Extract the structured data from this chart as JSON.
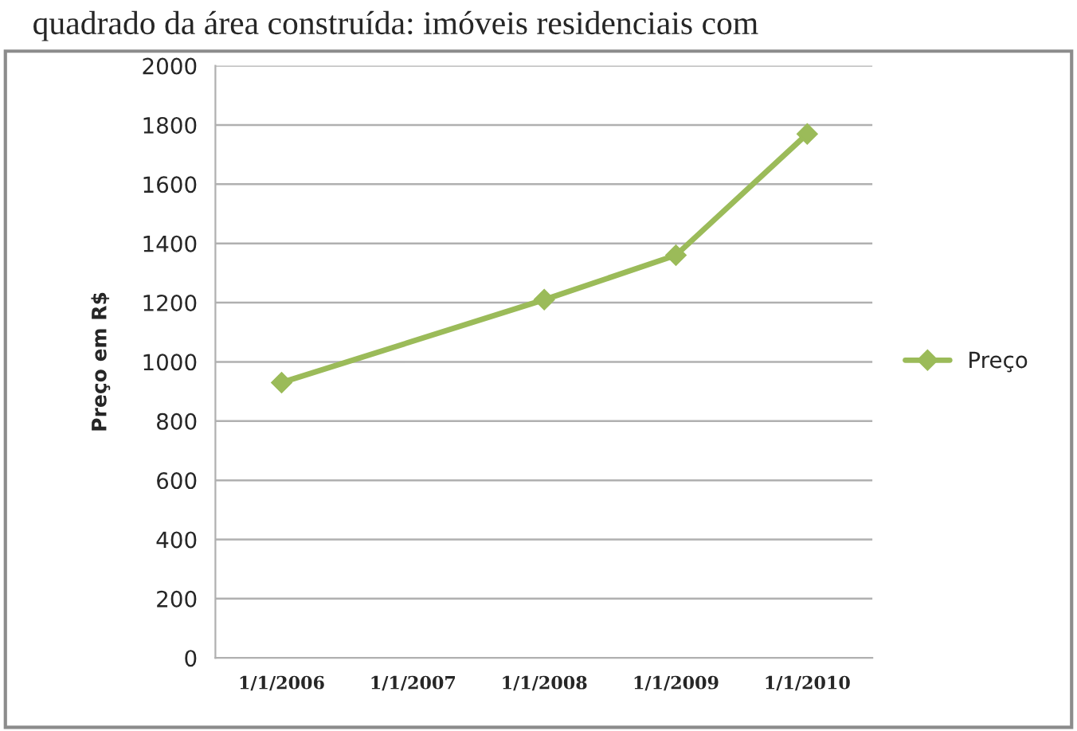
{
  "chart_data": {
    "type": "line",
    "annotations": [
      "quadrado da área construída: imóveis residenciais com"
    ],
    "ylabel": "Preço em R$",
    "x": [
      "2006-01-01",
      "2008-01-01",
      "2009-01-01",
      "2010-01-01"
    ],
    "series": [
      {
        "name": "Preço",
        "color": "#9bbb59",
        "values": [
          930,
          1210,
          1360,
          1770
        ]
      }
    ],
    "xlim": [
      "2005-07-01",
      "2010-07-01"
    ],
    "xticks": [
      {
        "value": "2006-01-01",
        "label": "1/1/2006"
      },
      {
        "value": "2007-01-01",
        "label": "1/1/2007"
      },
      {
        "value": "2008-01-01",
        "label": "1/1/2008"
      },
      {
        "value": "2009-01-01",
        "label": "1/1/2009"
      },
      {
        "value": "2010-01-01",
        "label": "1/1/2010"
      }
    ],
    "ylim": [
      0,
      2000
    ],
    "yticks": [
      0,
      200,
      400,
      600,
      800,
      1000,
      1200,
      1400,
      1600,
      1800,
      2000
    ],
    "grid": "y",
    "legend": "right",
    "marker": "diamond",
    "line_style": "solid"
  }
}
